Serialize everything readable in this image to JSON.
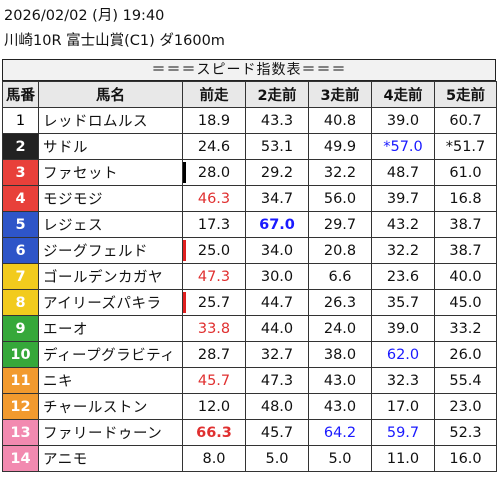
{
  "header": {
    "date": "2026/02/02 (月) 19:40",
    "race": "川崎10R 富士山賞(C1) ダ1600m"
  },
  "table_title": "＝＝＝スピード指数表＝＝＝",
  "columns": [
    "馬番",
    "馬名",
    "前走",
    "2走前",
    "3走前",
    "4走前",
    "5走前"
  ],
  "horses": [
    {
      "no": "1",
      "name": "レッドロムルス",
      "bg": "#ffffff",
      "fg": "#000000",
      "vals": [
        {
          "v": "18.9"
        },
        {
          "v": "43.3"
        },
        {
          "v": "40.8"
        },
        {
          "v": "39.0"
        },
        {
          "v": "60.7"
        }
      ]
    },
    {
      "no": "2",
      "name": "サドル",
      "bg": "#222222",
      "fg": "#ffffff",
      "vals": [
        {
          "v": "24.6"
        },
        {
          "v": "53.1"
        },
        {
          "v": "49.9"
        },
        {
          "v": "*57.0",
          "color": "#1a1aff"
        },
        {
          "v": "*51.7"
        }
      ]
    },
    {
      "no": "3",
      "name": "ファセット",
      "bg": "#e8403a",
      "fg": "#ffffff",
      "vals": [
        {
          "v": "28.0",
          "mark": "#000000"
        },
        {
          "v": "29.2"
        },
        {
          "v": "32.2"
        },
        {
          "v": "48.7"
        },
        {
          "v": "61.0"
        }
      ]
    },
    {
      "no": "4",
      "name": "モジモジ",
      "bg": "#e8403a",
      "fg": "#ffffff",
      "vals": [
        {
          "v": "46.3",
          "color": "#e03030"
        },
        {
          "v": "34.7"
        },
        {
          "v": "56.0"
        },
        {
          "v": "39.7"
        },
        {
          "v": "16.8"
        }
      ]
    },
    {
      "no": "5",
      "name": "レジェス",
      "bg": "#2e55c8",
      "fg": "#ffffff",
      "vals": [
        {
          "v": "17.3"
        },
        {
          "v": "67.0",
          "color": "#1a1aff",
          "bold": true
        },
        {
          "v": "29.7"
        },
        {
          "v": "43.2"
        },
        {
          "v": "38.7"
        }
      ]
    },
    {
      "no": "6",
      "name": "ジーグフェルド",
      "bg": "#2e55c8",
      "fg": "#ffffff",
      "vals": [
        {
          "v": "25.0",
          "mark": "#e02020"
        },
        {
          "v": "34.0"
        },
        {
          "v": "20.8"
        },
        {
          "v": "32.2"
        },
        {
          "v": "38.7"
        }
      ]
    },
    {
      "no": "7",
      "name": "ゴールデンカガヤ",
      "bg": "#f2cb1d",
      "fg": "#ffffff",
      "vals": [
        {
          "v": "47.3",
          "color": "#e03030"
        },
        {
          "v": "30.0"
        },
        {
          "v": "6.6"
        },
        {
          "v": "23.6"
        },
        {
          "v": "40.0"
        }
      ]
    },
    {
      "no": "8",
      "name": "アイリーズパキラ",
      "bg": "#f2cb1d",
      "fg": "#ffffff",
      "vals": [
        {
          "v": "25.7",
          "mark": "#e02020"
        },
        {
          "v": "44.7"
        },
        {
          "v": "26.3"
        },
        {
          "v": "35.7"
        },
        {
          "v": "45.0"
        }
      ]
    },
    {
      "no": "9",
      "name": "エーオ",
      "bg": "#36a83a",
      "fg": "#ffffff",
      "vals": [
        {
          "v": "33.8",
          "color": "#e03030"
        },
        {
          "v": "44.0"
        },
        {
          "v": "24.0"
        },
        {
          "v": "39.0"
        },
        {
          "v": "33.2"
        }
      ]
    },
    {
      "no": "10",
      "name": "ディープグラビティ",
      "bg": "#36a83a",
      "fg": "#ffffff",
      "vals": [
        {
          "v": "28.7"
        },
        {
          "v": "32.7"
        },
        {
          "v": "38.0"
        },
        {
          "v": "62.0",
          "color": "#1a1aff"
        },
        {
          "v": "26.0"
        }
      ]
    },
    {
      "no": "11",
      "name": "ニキ",
      "bg": "#f29a2e",
      "fg": "#ffffff",
      "vals": [
        {
          "v": "45.7",
          "color": "#e03030"
        },
        {
          "v": "47.3"
        },
        {
          "v": "43.0"
        },
        {
          "v": "32.3"
        },
        {
          "v": "55.4"
        }
      ]
    },
    {
      "no": "12",
      "name": "チャールストン",
      "bg": "#f29a2e",
      "fg": "#ffffff",
      "vals": [
        {
          "v": "12.0"
        },
        {
          "v": "48.0"
        },
        {
          "v": "43.0"
        },
        {
          "v": "17.0"
        },
        {
          "v": "23.0"
        }
      ]
    },
    {
      "no": "13",
      "name": "ファリードゥーン",
      "bg": "#f28ab0",
      "fg": "#ffffff",
      "vals": [
        {
          "v": "66.3",
          "color": "#e03030",
          "bold": true
        },
        {
          "v": "45.7"
        },
        {
          "v": "64.2",
          "color": "#1a1aff"
        },
        {
          "v": "59.7",
          "color": "#1a1aff"
        },
        {
          "v": "52.3"
        }
      ]
    },
    {
      "no": "14",
      "name": "アニモ",
      "bg": "#f28ab0",
      "fg": "#ffffff",
      "vals": [
        {
          "v": "8.0"
        },
        {
          "v": "5.0"
        },
        {
          "v": "5.0"
        },
        {
          "v": "11.0"
        },
        {
          "v": "16.0"
        }
      ]
    }
  ]
}
